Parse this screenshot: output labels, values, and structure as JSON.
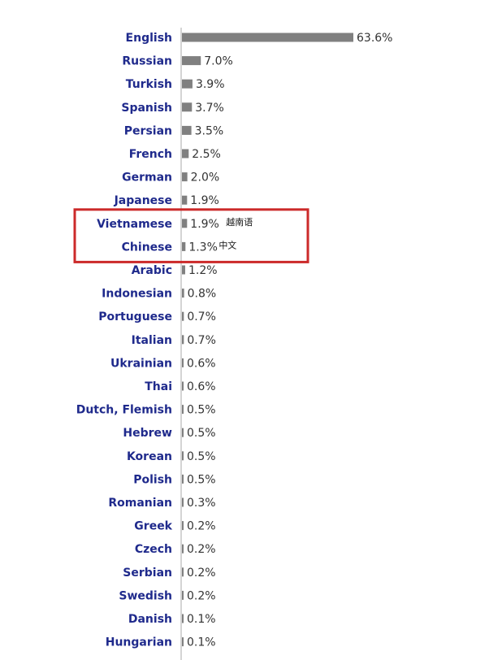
{
  "chart_data": {
    "type": "bar",
    "orientation": "horizontal",
    "categories": [
      "English",
      "Russian",
      "Turkish",
      "Spanish",
      "Persian",
      "French",
      "German",
      "Japanese",
      "Vietnamese",
      "Chinese",
      "Arabic",
      "Indonesian",
      "Portuguese",
      "Italian",
      "Ukrainian",
      "Thai",
      "Dutch, Flemish",
      "Hebrew",
      "Korean",
      "Polish",
      "Romanian",
      "Greek",
      "Czech",
      "Serbian",
      "Swedish",
      "Danish",
      "Hungarian"
    ],
    "values": [
      63.6,
      7.0,
      3.9,
      3.7,
      3.5,
      2.5,
      2.0,
      1.9,
      1.9,
      1.3,
      1.2,
      0.8,
      0.7,
      0.7,
      0.6,
      0.6,
      0.5,
      0.5,
      0.5,
      0.5,
      0.3,
      0.2,
      0.2,
      0.2,
      0.2,
      0.1,
      0.1
    ],
    "value_labels": [
      "63.6%",
      "7.0%",
      "3.9%",
      "3.7%",
      "3.5%",
      "2.5%",
      "2.0%",
      "1.9%",
      "1.9%",
      "1.3%",
      "1.2%",
      "0.8%",
      "0.7%",
      "0.7%",
      "0.6%",
      "0.6%",
      "0.5%",
      "0.5%",
      "0.5%",
      "0.5%",
      "0.3%",
      "0.2%",
      "0.2%",
      "0.2%",
      "0.2%",
      "0.1%",
      "0.1%"
    ],
    "annotations": [
      {
        "category": "Vietnamese",
        "text": "越南语"
      },
      {
        "category": "Chinese",
        "text": "中文"
      }
    ],
    "highlight": {
      "categories": [
        "Vietnamese",
        "Chinese"
      ],
      "color": "#cc2a2a"
    },
    "xlim": [
      0,
      63.6
    ],
    "grid": false,
    "colors": {
      "bar": "#808080",
      "label": "#1f2a8c",
      "value": "#333333",
      "axis": "#aaaaaa"
    }
  }
}
